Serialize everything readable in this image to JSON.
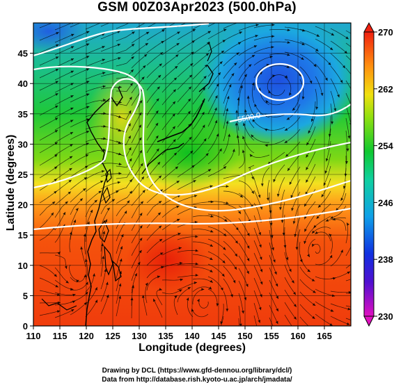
{
  "title": "GSM 00Z03Apr2023 (500.0hPa)",
  "x_axis": {
    "label": "Longitude (degrees)",
    "ticks": [
      "110",
      "115",
      "120",
      "125",
      "130",
      "135",
      "140",
      "145",
      "150",
      "155",
      "160",
      "165"
    ]
  },
  "y_axis": {
    "label": "Latitude  (degrees)",
    "ticks": [
      "0",
      "5",
      "10",
      "15",
      "20",
      "25",
      "30",
      "35",
      "40",
      "45"
    ]
  },
  "colorbar": {
    "ticks": [
      "230",
      "238",
      "246",
      "254",
      "262",
      "270"
    ]
  },
  "contour_labels": [
    "5500.0"
  ],
  "credits": [
    "Drawing by DCL (https://www.gfd-dennou.org/library/dcl/)",
    "Data from http://database.rish.kyoto-u.ac.jp/arch/jmadata/"
  ],
  "chart_data": {
    "type": "heatmap",
    "title": "GSM 00Z03Apr2023 (500.0hPa)",
    "xlabel": "Longitude (degrees)",
    "ylabel": "Latitude  (degrees)",
    "xlim": [
      110,
      170
    ],
    "ylim": [
      0,
      50
    ],
    "colorbar_range": [
      230,
      270
    ],
    "colorbar_ticks": [
      230,
      238,
      246,
      254,
      262,
      270
    ],
    "overlays": [
      "streamlines",
      "geopotential height contours",
      "coastlines",
      "lat-lon grid"
    ],
    "features": [
      {
        "name": "cold low",
        "lon": 156,
        "lat": 42,
        "value": 238
      },
      {
        "name": "trough",
        "lon": 125,
        "lat": 30,
        "value": 252
      },
      {
        "name": "warm region",
        "lon": 135,
        "lat": 10,
        "value": 270
      }
    ]
  }
}
